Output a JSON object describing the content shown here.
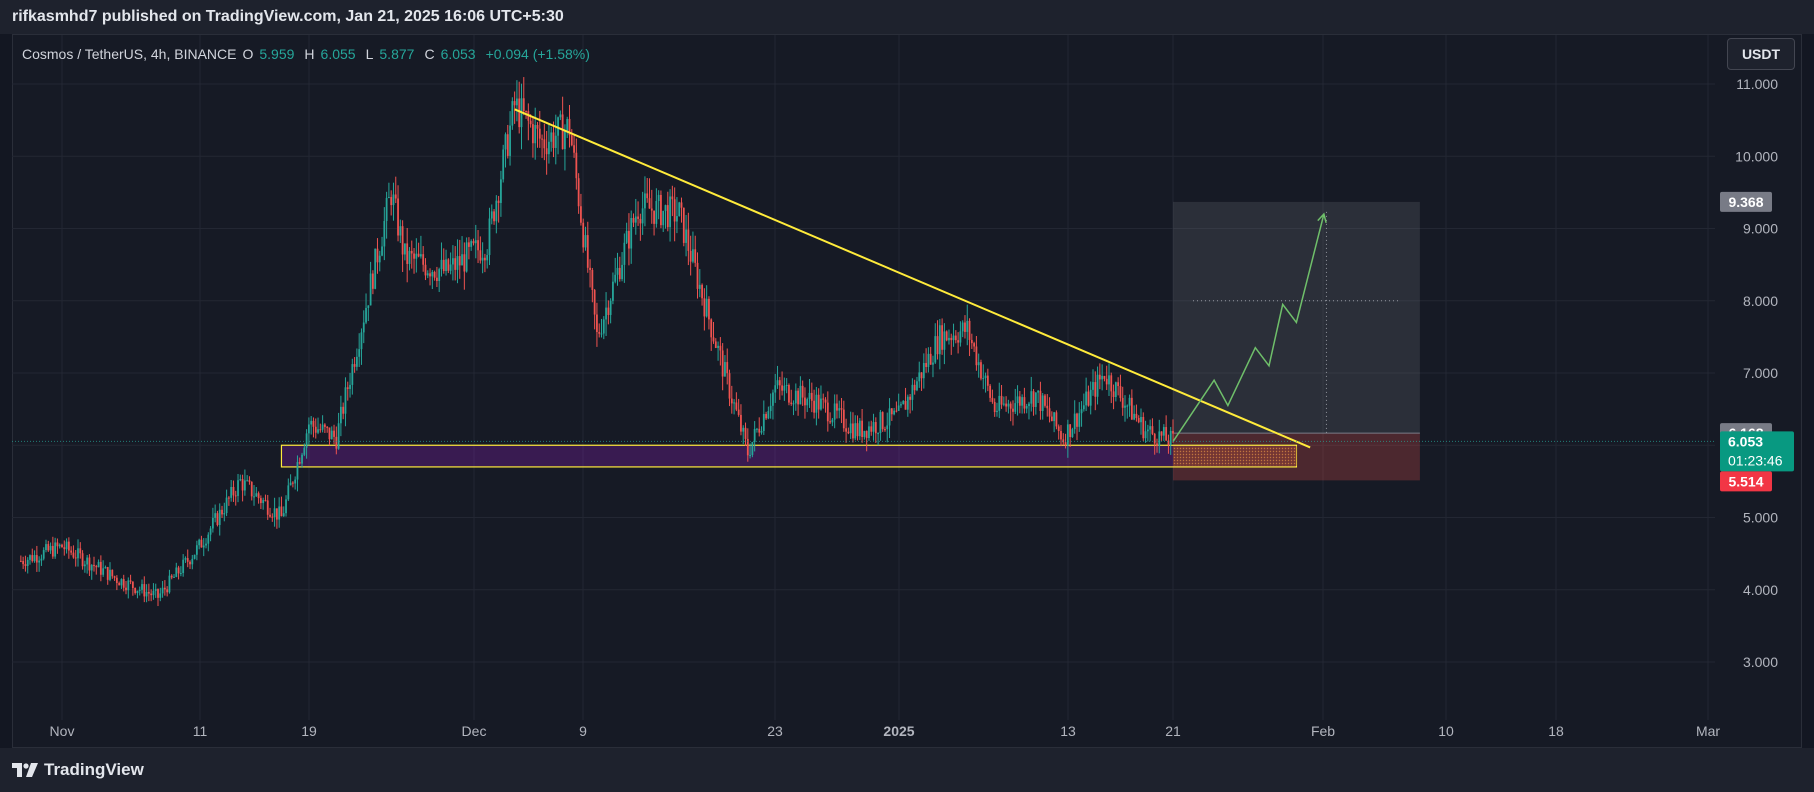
{
  "header": {
    "published": "rifkasmhd7 published on TradingView.com, Jan 21, 2025 16:06 UTC+5:30"
  },
  "legend": {
    "symbol": "Cosmos / TetherUS, 4h, BINANCE",
    "open_label": "O",
    "open": "5.959",
    "high_label": "H",
    "high": "6.055",
    "low_label": "L",
    "low": "5.877",
    "close_label": "C",
    "close": "6.053",
    "change": "+0.094 (+1.58%)"
  },
  "currency_button": "USDT",
  "footer": {
    "brand": "TradingView"
  },
  "colors": {
    "up": "#26a69a",
    "down": "#ef5350",
    "trendline": "#ffeb3b",
    "target_zone": "#787b86",
    "stop_zone": "#ef5350",
    "support_zone": "#7b1fa2"
  },
  "chart_data": {
    "type": "candlestick",
    "timeframe": "4h",
    "y_axis": {
      "ticks": [
        "11.000",
        "10.000",
        "9.000",
        "8.000",
        "7.000",
        "6.000",
        "5.000",
        "4.000",
        "3.000"
      ],
      "range": [
        2.6,
        11.55
      ]
    },
    "x_axis": {
      "ticks": [
        "Nov",
        "11",
        "19",
        "Dec",
        "9",
        "23",
        "2025",
        "13",
        "21",
        "Feb",
        "10",
        "18",
        "Mar"
      ]
    },
    "price_labels": {
      "target": "9.368",
      "entry": "6.168",
      "last": "6.053",
      "countdown": "01:23:46",
      "stop": "5.514"
    },
    "close_path_key_points": [
      [
        "Oct 29",
        4.4
      ],
      [
        "Nov 1",
        4.6
      ],
      [
        "Nov 5",
        4.15
      ],
      [
        "Nov 8",
        3.9
      ],
      [
        "Nov 11",
        4.6
      ],
      [
        "Nov 14",
        5.5
      ],
      [
        "Nov 17",
        5.0
      ],
      [
        "Nov 19",
        6.3
      ],
      [
        "Nov 21",
        6.1
      ],
      [
        "Nov 23",
        7.8
      ],
      [
        "Nov 25",
        9.5
      ],
      [
        "Nov 26",
        8.6
      ],
      [
        "Nov 29",
        8.4
      ],
      [
        "Dec 2",
        8.8
      ],
      [
        "Dec 4",
        10.7
      ],
      [
        "Dec 6",
        10.2
      ],
      [
        "Dec 8",
        10.4
      ],
      [
        "Dec 10",
        7.5
      ],
      [
        "Dec 13",
        9.3
      ],
      [
        "Dec 16",
        9.2
      ],
      [
        "Dec 19",
        7.2
      ],
      [
        "Dec 21",
        5.9
      ],
      [
        "Dec 23",
        6.8
      ],
      [
        "Dec 26",
        6.6
      ],
      [
        "Dec 29",
        6.2
      ],
      [
        "Jan 1",
        6.4
      ],
      [
        "Jan 4",
        7.5
      ],
      [
        "Jan 6",
        7.6
      ],
      [
        "Jan 8",
        6.5
      ],
      [
        "Jan 11",
        6.7
      ],
      [
        "Jan 13",
        6.1
      ],
      [
        "Jan 16",
        7.0
      ],
      [
        "Jan 19",
        6.2
      ],
      [
        "Jan 21",
        6.05
      ]
    ],
    "trendline": {
      "from": [
        "Dec 4",
        10.65
      ],
      "to": [
        "Jan 31",
        5.97
      ]
    },
    "support_zone": {
      "from": "Nov 17",
      "to": "Jan 30",
      "top": 6.0,
      "bottom": 5.7
    },
    "long_position": {
      "from": "Jan 21",
      "to": "Feb 8",
      "entry": 6.168,
      "target": 9.368,
      "stop": 5.514
    },
    "projection_path": [
      [
        "Jan 21",
        6.05
      ],
      [
        "Jan 24",
        6.9
      ],
      [
        "Jan 25",
        6.55
      ],
      [
        "Jan 27",
        7.35
      ],
      [
        "Jan 28",
        7.1
      ],
      [
        "Jan 29",
        7.95
      ],
      [
        "Jan 30",
        7.7
      ],
      [
        "Feb 1",
        9.2
      ]
    ]
  }
}
